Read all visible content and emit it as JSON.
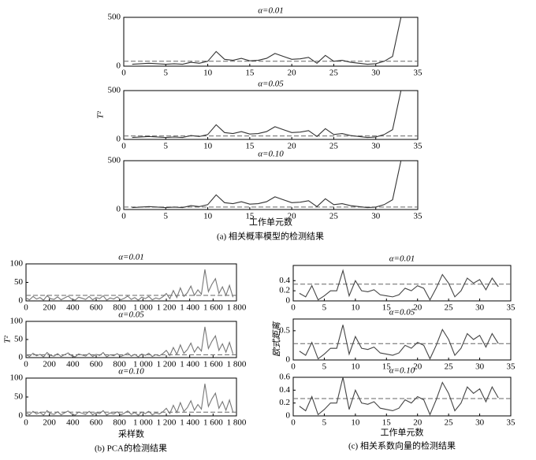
{
  "chart_data": [
    {
      "type": "line",
      "title": "α=0.01",
      "x": [
        1,
        2,
        3,
        4,
        5,
        6,
        7,
        8,
        9,
        10,
        11,
        12,
        13,
        14,
        15,
        16,
        17,
        18,
        19,
        20,
        21,
        22,
        23,
        24,
        25,
        26,
        27,
        28,
        29,
        30,
        31,
        32,
        33
      ],
      "values": [
        20,
        25,
        30,
        25,
        20,
        25,
        20,
        40,
        30,
        50,
        150,
        70,
        60,
        80,
        55,
        60,
        80,
        130,
        100,
        70,
        75,
        90,
        30,
        110,
        50,
        60,
        40,
        30,
        20,
        25,
        50,
        100,
        500
      ],
      "color": "#333333",
      "threshold": 50,
      "xlim": [
        0,
        35
      ],
      "xticks": [
        0,
        5,
        10,
        15,
        20,
        25,
        30,
        35
      ],
      "ylim": [
        0,
        500
      ],
      "yticks": [
        0,
        500
      ]
    },
    {
      "type": "line",
      "title": "α=0.05",
      "ylabel": "T²",
      "x": [
        1,
        2,
        3,
        4,
        5,
        6,
        7,
        8,
        9,
        10,
        11,
        12,
        13,
        14,
        15,
        16,
        17,
        18,
        19,
        20,
        21,
        22,
        23,
        24,
        25,
        26,
        27,
        28,
        29,
        30,
        31,
        32,
        33
      ],
      "values": [
        20,
        25,
        30,
        25,
        20,
        25,
        20,
        40,
        30,
        50,
        150,
        70,
        60,
        80,
        55,
        60,
        80,
        130,
        100,
        70,
        75,
        90,
        30,
        110,
        50,
        60,
        40,
        30,
        20,
        25,
        50,
        100,
        500
      ],
      "color": "#333333",
      "threshold": 35,
      "xlim": [
        0,
        35
      ],
      "xticks": [
        0,
        5,
        10,
        15,
        20,
        25,
        30,
        35
      ],
      "ylim": [
        0,
        500
      ],
      "yticks": [
        0,
        500
      ]
    },
    {
      "type": "line",
      "title": "α=0.10",
      "xlabel": "工作单元数",
      "caption": "(a) 相关概率模型的检测结果",
      "x": [
        1,
        2,
        3,
        4,
        5,
        6,
        7,
        8,
        9,
        10,
        11,
        12,
        13,
        14,
        15,
        16,
        17,
        18,
        19,
        20,
        21,
        22,
        23,
        24,
        25,
        26,
        27,
        28,
        29,
        30,
        31,
        32,
        33
      ],
      "values": [
        20,
        25,
        30,
        25,
        20,
        25,
        20,
        40,
        30,
        50,
        150,
        70,
        60,
        80,
        55,
        60,
        80,
        130,
        100,
        70,
        75,
        90,
        30,
        110,
        50,
        60,
        40,
        30,
        20,
        25,
        50,
        100,
        500
      ],
      "color": "#333333",
      "threshold": 25,
      "xlim": [
        0,
        35
      ],
      "xticks": [
        0,
        5,
        10,
        15,
        20,
        25,
        30,
        35
      ],
      "ylim": [
        0,
        500
      ],
      "yticks": [
        0,
        500
      ]
    },
    {
      "type": "line",
      "title": "α=0.01",
      "x": [
        0,
        30,
        60,
        90,
        120,
        150,
        180,
        210,
        240,
        270,
        300,
        330,
        360,
        390,
        420,
        450,
        480,
        510,
        540,
        570,
        600,
        630,
        660,
        690,
        720,
        750,
        780,
        810,
        840,
        870,
        900,
        930,
        960,
        990,
        1020,
        1050,
        1080,
        1110,
        1140,
        1170,
        1200,
        1230,
        1260,
        1290,
        1320,
        1350,
        1380,
        1410,
        1440,
        1470,
        1500,
        1530,
        1560,
        1590,
        1620,
        1650,
        1680,
        1710,
        1740,
        1770
      ],
      "values": [
        8,
        3,
        12,
        5,
        9,
        2,
        14,
        6,
        4,
        11,
        3,
        8,
        13,
        5,
        2,
        10,
        7,
        4,
        12,
        3,
        9,
        6,
        14,
        2,
        8,
        5,
        11,
        3,
        7,
        13,
        4,
        9,
        2,
        10,
        6,
        12,
        3,
        8,
        5,
        11,
        20,
        6,
        28,
        9,
        35,
        12,
        22,
        40,
        15,
        30,
        18,
        85,
        25,
        45,
        60,
        20,
        38,
        15,
        42,
        10
      ],
      "color": "#777777",
      "threshold": 15,
      "xlim": [
        0,
        1800
      ],
      "xticks": [
        0,
        200,
        400,
        600,
        800,
        {
          "value": 1000,
          "label": "1 000"
        },
        {
          "value": 1200,
          "label": "1 200"
        },
        {
          "value": 1400,
          "label": "1 400"
        },
        {
          "value": 1600,
          "label": "1 600"
        },
        {
          "value": 1800,
          "label": "1 800"
        }
      ],
      "ylim": [
        0,
        100
      ],
      "yticks": [
        0,
        50,
        100
      ]
    },
    {
      "type": "line",
      "title": "α=0.05",
      "ylabel": "T²",
      "x": [
        0,
        30,
        60,
        90,
        120,
        150,
        180,
        210,
        240,
        270,
        300,
        330,
        360,
        390,
        420,
        450,
        480,
        510,
        540,
        570,
        600,
        630,
        660,
        690,
        720,
        750,
        780,
        810,
        840,
        870,
        900,
        930,
        960,
        990,
        1020,
        1050,
        1080,
        1110,
        1140,
        1170,
        1200,
        1230,
        1260,
        1290,
        1320,
        1350,
        1380,
        1410,
        1440,
        1470,
        1500,
        1530,
        1560,
        1590,
        1620,
        1650,
        1680,
        1710,
        1740,
        1770
      ],
      "values": [
        8,
        3,
        12,
        5,
        9,
        2,
        14,
        6,
        4,
        11,
        3,
        8,
        13,
        5,
        2,
        10,
        7,
        4,
        12,
        3,
        9,
        6,
        14,
        2,
        8,
        5,
        11,
        3,
        7,
        13,
        4,
        9,
        2,
        10,
        6,
        12,
        3,
        8,
        5,
        11,
        20,
        6,
        28,
        9,
        35,
        12,
        22,
        40,
        15,
        30,
        18,
        85,
        25,
        45,
        60,
        20,
        38,
        15,
        42,
        10
      ],
      "color": "#777777",
      "threshold": 8,
      "xlim": [
        0,
        1800
      ],
      "xticks": [
        0,
        200,
        400,
        600,
        800,
        {
          "value": 1000,
          "label": "1 000"
        },
        {
          "value": 1200,
          "label": "1 200"
        },
        {
          "value": 1400,
          "label": "1 400"
        },
        {
          "value": 1600,
          "label": "1 600"
        },
        {
          "value": 1800,
          "label": "1 800"
        }
      ],
      "ylim": [
        0,
        100
      ],
      "yticks": [
        0,
        50,
        100
      ]
    },
    {
      "type": "line",
      "title": "α=0.10",
      "xlabel": "采样数",
      "caption": "(b) PCA的检测结果",
      "x": [
        0,
        30,
        60,
        90,
        120,
        150,
        180,
        210,
        240,
        270,
        300,
        330,
        360,
        390,
        420,
        450,
        480,
        510,
        540,
        570,
        600,
        630,
        660,
        690,
        720,
        750,
        780,
        810,
        840,
        870,
        900,
        930,
        960,
        990,
        1020,
        1050,
        1080,
        1110,
        1140,
        1170,
        1200,
        1230,
        1260,
        1290,
        1320,
        1350,
        1380,
        1410,
        1440,
        1470,
        1500,
        1530,
        1560,
        1590,
        1620,
        1650,
        1680,
        1710,
        1740,
        1770
      ],
      "values": [
        8,
        3,
        12,
        5,
        9,
        2,
        14,
        6,
        4,
        11,
        3,
        8,
        13,
        5,
        2,
        10,
        7,
        4,
        12,
        3,
        9,
        6,
        14,
        2,
        8,
        5,
        11,
        3,
        7,
        13,
        4,
        9,
        2,
        10,
        6,
        12,
        3,
        8,
        5,
        11,
        20,
        6,
        28,
        9,
        35,
        12,
        22,
        40,
        15,
        30,
        18,
        85,
        25,
        45,
        60,
        20,
        38,
        15,
        42,
        10
      ],
      "color": "#777777",
      "threshold": 10,
      "xlim": [
        0,
        1800
      ],
      "xticks": [
        0,
        200,
        400,
        600,
        800,
        {
          "value": 1000,
          "label": "1 000"
        },
        {
          "value": 1200,
          "label": "1 200"
        },
        {
          "value": 1400,
          "label": "1 400"
        },
        {
          "value": 1600,
          "label": "1 600"
        },
        {
          "value": 1800,
          "label": "1 800"
        }
      ],
      "ylim": [
        0,
        100
      ],
      "yticks": [
        0,
        50,
        100
      ]
    },
    {
      "type": "line",
      "title": "α=0.01",
      "x": [
        1,
        2,
        3,
        4,
        5,
        6,
        7,
        8,
        9,
        10,
        11,
        12,
        13,
        14,
        15,
        16,
        17,
        18,
        19,
        20,
        21,
        22,
        23,
        24,
        25,
        26,
        27,
        28,
        29,
        30,
        31,
        32,
        33
      ],
      "values": [
        0.15,
        0.08,
        0.3,
        0.02,
        0.1,
        0.2,
        0.2,
        0.6,
        0.1,
        0.4,
        0.2,
        0.18,
        0.22,
        0.12,
        0.1,
        0.08,
        0.12,
        0.25,
        0.2,
        0.3,
        0.25,
        0.02,
        0.25,
        0.52,
        0.35,
        0.08,
        0.2,
        0.45,
        0.35,
        0.42,
        0.22,
        0.45,
        0.28
      ],
      "color": "#444444",
      "threshold": 0.33,
      "xlim": [
        0,
        35
      ],
      "xticks": [
        0,
        5,
        10,
        15,
        20,
        25,
        30,
        35
      ],
      "ylim": [
        0,
        0.7
      ],
      "yticks": [
        0,
        0.2,
        0.4
      ]
    },
    {
      "type": "line",
      "title": "α=0.05",
      "ylabel": "欧式距离",
      "x": [
        1,
        2,
        3,
        4,
        5,
        6,
        7,
        8,
        9,
        10,
        11,
        12,
        13,
        14,
        15,
        16,
        17,
        18,
        19,
        20,
        21,
        22,
        23,
        24,
        25,
        26,
        27,
        28,
        29,
        30,
        31,
        32,
        33
      ],
      "values": [
        0.15,
        0.08,
        0.3,
        0.02,
        0.1,
        0.2,
        0.2,
        0.6,
        0.1,
        0.4,
        0.2,
        0.18,
        0.22,
        0.12,
        0.1,
        0.08,
        0.12,
        0.25,
        0.2,
        0.3,
        0.25,
        0.02,
        0.25,
        0.52,
        0.35,
        0.08,
        0.2,
        0.45,
        0.35,
        0.42,
        0.22,
        0.45,
        0.28
      ],
      "color": "#444444",
      "threshold": 0.28,
      "xlim": [
        0,
        35
      ],
      "xticks": [
        0,
        5,
        10,
        15,
        20,
        25,
        30,
        35
      ],
      "ylim": [
        0,
        0.7
      ],
      "yticks": [
        0,
        0.5
      ]
    },
    {
      "type": "line",
      "title": "α=0.10",
      "xlabel": "工作单元数",
      "caption": "(c) 相关系数向量的检测结果",
      "x": [
        1,
        2,
        3,
        4,
        5,
        6,
        7,
        8,
        9,
        10,
        11,
        12,
        13,
        14,
        15,
        16,
        17,
        18,
        19,
        20,
        21,
        22,
        23,
        24,
        25,
        26,
        27,
        28,
        29,
        30,
        31,
        32,
        33
      ],
      "values": [
        0.15,
        0.08,
        0.3,
        0.02,
        0.1,
        0.2,
        0.2,
        0.6,
        0.1,
        0.4,
        0.2,
        0.18,
        0.22,
        0.12,
        0.1,
        0.08,
        0.12,
        0.25,
        0.2,
        0.3,
        0.25,
        0.02,
        0.25,
        0.52,
        0.35,
        0.08,
        0.2,
        0.45,
        0.35,
        0.42,
        0.22,
        0.45,
        0.28
      ],
      "color": "#444444",
      "threshold": 0.27,
      "xlim": [
        0,
        35
      ],
      "xticks": [
        0,
        5,
        10,
        15,
        20,
        25,
        30,
        35
      ],
      "ylim": [
        0,
        0.6
      ],
      "yticks": [
        0,
        0.2,
        0.4,
        0.6
      ]
    }
  ]
}
